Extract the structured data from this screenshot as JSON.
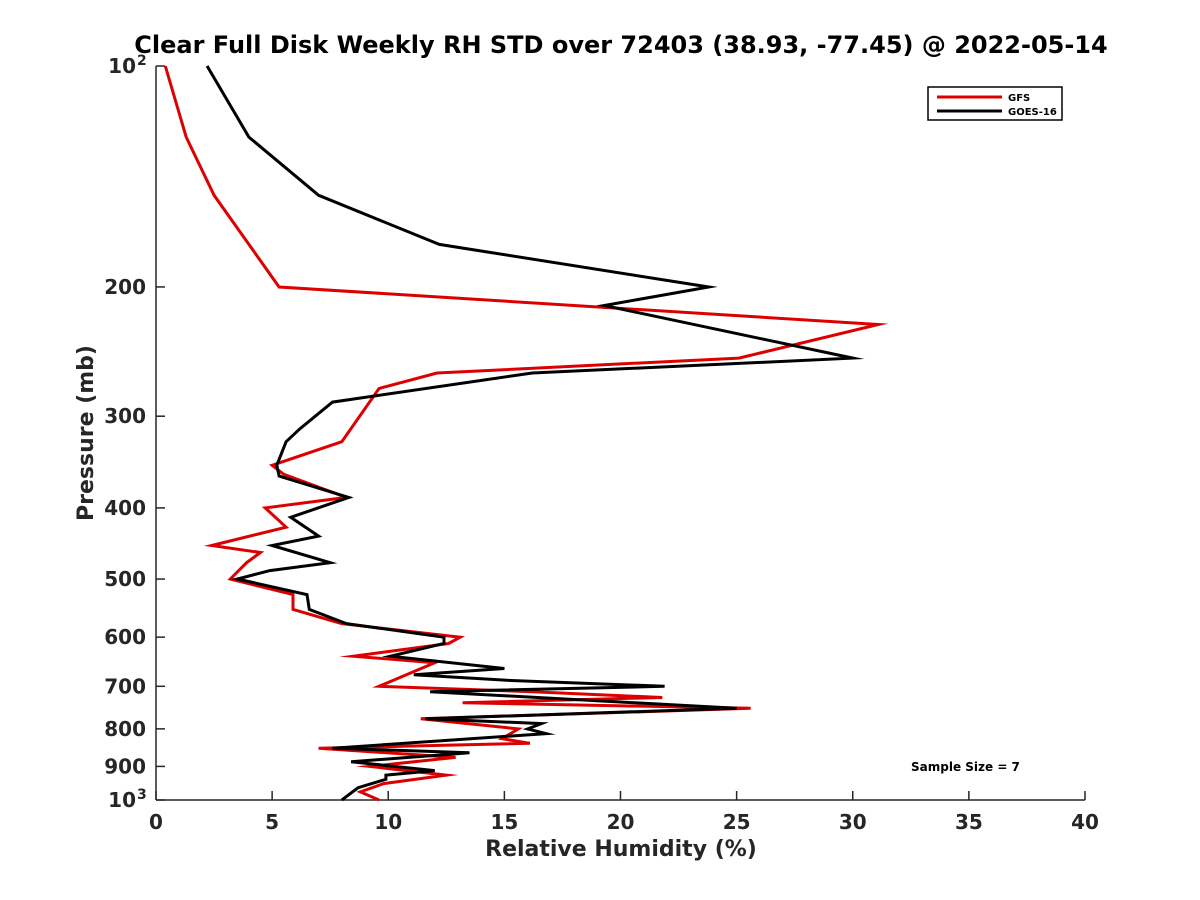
{
  "chart_data": {
    "type": "line",
    "title": "Clear Full Disk Weekly RH STD over 72403 (38.93, -77.45) @ 2022-05-14",
    "xlabel": "Relative Humidity (%)",
    "ylabel": "Pressure (mb)",
    "xlim": [
      0,
      40
    ],
    "ylim": [
      100,
      1000
    ],
    "y_scale": "log",
    "y_reversed": true,
    "x_ticks": [
      0,
      5,
      10,
      15,
      20,
      25,
      30,
      35,
      40
    ],
    "y_ticks": [
      {
        "value": 100,
        "label": "10",
        "sup": "2"
      },
      {
        "value": 200,
        "label": "200",
        "sup": ""
      },
      {
        "value": 300,
        "label": "300",
        "sup": ""
      },
      {
        "value": 400,
        "label": "400",
        "sup": ""
      },
      {
        "value": 500,
        "label": "500",
        "sup": ""
      },
      {
        "value": 600,
        "label": "600",
        "sup": ""
      },
      {
        "value": 700,
        "label": "700",
        "sup": ""
      },
      {
        "value": 800,
        "label": "800",
        "sup": ""
      },
      {
        "value": 900,
        "label": "900",
        "sup": ""
      },
      {
        "value": 1000,
        "label": "10",
        "sup": "3"
      }
    ],
    "grid": false,
    "legend_position": "top-right",
    "annotation": "Sample Size = 7",
    "series": [
      {
        "name": "GFS",
        "color": "#dd0000",
        "points": [
          [
            0.4,
            100
          ],
          [
            1.3,
            125
          ],
          [
            2.5,
            150
          ],
          [
            4.0,
            175
          ],
          [
            5.3,
            200
          ],
          [
            31.1,
            225
          ],
          [
            25.1,
            250
          ],
          [
            12.1,
            262
          ],
          [
            9.6,
            275
          ],
          [
            8.0,
            325
          ],
          [
            5.0,
            350
          ],
          [
            5.5,
            360
          ],
          [
            8.2,
            387
          ],
          [
            4.7,
            400
          ],
          [
            5.6,
            425
          ],
          [
            2.4,
            450
          ],
          [
            4.5,
            460
          ],
          [
            3.9,
            475
          ],
          [
            3.2,
            500
          ],
          [
            5.9,
            525
          ],
          [
            5.9,
            550
          ],
          [
            8.0,
            575
          ],
          [
            13.1,
            600
          ],
          [
            12.6,
            612
          ],
          [
            8.5,
            637
          ],
          [
            12.0,
            650
          ],
          [
            9.6,
            700
          ],
          [
            16.2,
            712
          ],
          [
            21.8,
            725
          ],
          [
            13.2,
            737
          ],
          [
            25.6,
            750
          ],
          [
            11.4,
            775
          ],
          [
            15.6,
            800
          ],
          [
            14.9,
            825
          ],
          [
            16.1,
            837
          ],
          [
            7.0,
            850
          ],
          [
            12.9,
            875
          ],
          [
            9.2,
            900
          ],
          [
            12.5,
            925
          ],
          [
            9.8,
            950
          ],
          [
            8.8,
            975
          ],
          [
            9.6,
            1000
          ]
        ]
      },
      {
        "name": "GOES-16",
        "color": "#000000",
        "points": [
          [
            2.2,
            100
          ],
          [
            4.0,
            125
          ],
          [
            7.0,
            150
          ],
          [
            12.2,
            175
          ],
          [
            23.8,
            200
          ],
          [
            19.3,
            212
          ],
          [
            30.0,
            250
          ],
          [
            16.2,
            262
          ],
          [
            7.6,
            287
          ],
          [
            6.2,
            312
          ],
          [
            5.6,
            325
          ],
          [
            5.2,
            350
          ],
          [
            5.3,
            362
          ],
          [
            8.3,
            387
          ],
          [
            5.8,
            412
          ],
          [
            7.0,
            437
          ],
          [
            5.0,
            450
          ],
          [
            7.5,
            475
          ],
          [
            4.9,
            487
          ],
          [
            3.5,
            500
          ],
          [
            6.5,
            525
          ],
          [
            6.6,
            550
          ],
          [
            8.2,
            575
          ],
          [
            12.4,
            600
          ],
          [
            12.4,
            612
          ],
          [
            10.1,
            637
          ],
          [
            15.0,
            662
          ],
          [
            11.1,
            675
          ],
          [
            15.1,
            687
          ],
          [
            21.9,
            700
          ],
          [
            11.8,
            712
          ],
          [
            25.0,
            750
          ],
          [
            11.6,
            775
          ],
          [
            16.6,
            787
          ],
          [
            16.0,
            800
          ],
          [
            16.8,
            812
          ],
          [
            7.6,
            850
          ],
          [
            13.5,
            862
          ],
          [
            8.4,
            887
          ],
          [
            12.0,
            912
          ],
          [
            9.9,
            925
          ],
          [
            9.9,
            937
          ],
          [
            8.7,
            962
          ],
          [
            8.0,
            1000
          ]
        ]
      }
    ]
  }
}
